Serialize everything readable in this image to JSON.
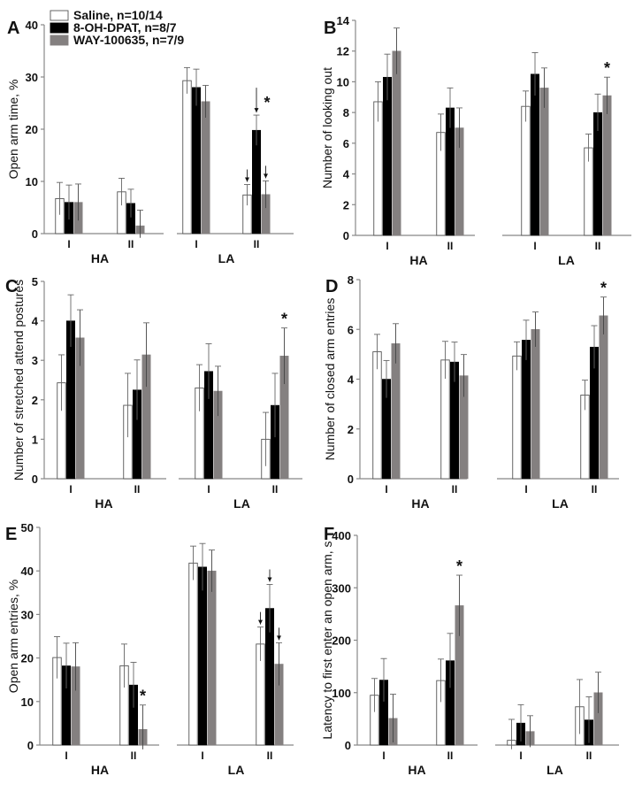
{
  "legend": [
    {
      "label": "Saline, n=10/14",
      "color": "#ffffff",
      "stroke": "#555555"
    },
    {
      "label": "8-OH-DPAT, n=8/7",
      "color": "#000000",
      "stroke": "#000000"
    },
    {
      "label": "WAY-100635, n=7/9",
      "color": "#848080",
      "stroke": "#848080"
    }
  ],
  "chart_data": [
    {
      "panel": "A",
      "type": "bar",
      "ylabel": "Open arm time, %",
      "ylim": [
        0,
        40
      ],
      "yticks": [
        0,
        10,
        20,
        30,
        40
      ],
      "groups": [
        "HA",
        "LA"
      ],
      "categories": [
        "I",
        "II"
      ],
      "series": [
        {
          "name": "Saline",
          "values": [
            [
              6.7,
              8.0
            ],
            [
              29.3,
              7.4
            ]
          ],
          "errors": [
            [
              3.1,
              2.6
            ],
            [
              2.5,
              2.0
            ]
          ]
        },
        {
          "name": "8-OH-DPAT",
          "values": [
            [
              6.0,
              5.8
            ],
            [
              28.0,
              19.8
            ]
          ],
          "errors": [
            [
              3.3,
              2.7
            ],
            [
              3.5,
              2.9
            ]
          ]
        },
        {
          "name": "WAY-100635",
          "values": [
            [
              6.0,
              1.5
            ],
            [
              25.3,
              7.5
            ]
          ],
          "errors": [
            [
              3.5,
              3.0
            ],
            [
              3.1,
              2.6
            ]
          ]
        }
      ],
      "stars": [
        {
          "group": 1,
          "cat": 1,
          "series": 1
        }
      ],
      "arrows": [
        {
          "group": 1,
          "cat": 1,
          "series": 0
        },
        {
          "group": 1,
          "cat": 1,
          "series": 1
        },
        {
          "group": 1,
          "cat": 1,
          "series": 2
        }
      ]
    },
    {
      "panel": "B",
      "type": "bar",
      "ylabel": "Number of looking out",
      "ylim": [
        0,
        14
      ],
      "yticks": [
        0,
        2,
        4,
        6,
        8,
        10,
        12,
        14
      ],
      "groups": [
        "HA",
        "LA"
      ],
      "categories": [
        "I",
        "II"
      ],
      "series": [
        {
          "name": "Saline",
          "values": [
            [
              8.7,
              6.7
            ],
            [
              8.4,
              5.7
            ]
          ],
          "errors": [
            [
              1.3,
              1.2
            ],
            [
              1.0,
              0.9
            ]
          ]
        },
        {
          "name": "8-OH-DPAT",
          "values": [
            [
              10.3,
              8.3
            ],
            [
              10.5,
              8.0
            ]
          ],
          "errors": [
            [
              1.5,
              1.3
            ],
            [
              1.4,
              1.2
            ]
          ]
        },
        {
          "name": "WAY-100635",
          "values": [
            [
              12.0,
              7.0
            ],
            [
              9.6,
              9.1
            ]
          ],
          "errors": [
            [
              1.5,
              1.3
            ],
            [
              1.3,
              1.2
            ]
          ]
        }
      ],
      "stars": [
        {
          "group": 1,
          "cat": 1,
          "series": 2
        }
      ],
      "arrows": []
    },
    {
      "panel": "C",
      "type": "bar",
      "ylabel": "Number of stretched attend postures",
      "ylim": [
        0,
        5
      ],
      "yticks": [
        0,
        1,
        2,
        3,
        4,
        5
      ],
      "groups": [
        "HA",
        "LA"
      ],
      "categories": [
        "I",
        "II"
      ],
      "series": [
        {
          "name": "Saline",
          "values": [
            [
              2.43,
              1.86
            ],
            [
              2.3,
              1.0
            ]
          ],
          "errors": [
            [
              0.71,
              0.81
            ],
            [
              0.59,
              0.68
            ]
          ]
        },
        {
          "name": "8-OH-DPAT",
          "values": [
            [
              4.0,
              2.25
            ],
            [
              2.72,
              1.86
            ]
          ],
          "errors": [
            [
              0.66,
              0.76
            ],
            [
              0.7,
              0.81
            ]
          ]
        },
        {
          "name": "WAY-100635",
          "values": [
            [
              3.57,
              3.14
            ],
            [
              2.22,
              3.11
            ]
          ],
          "errors": [
            [
              0.71,
              0.81
            ],
            [
              0.63,
              0.71
            ]
          ]
        }
      ],
      "stars": [
        {
          "group": 1,
          "cat": 1,
          "series": 2
        }
      ],
      "arrows": []
    },
    {
      "panel": "D",
      "type": "bar",
      "ylabel": "Number of closed arm entries",
      "ylim": [
        0,
        8
      ],
      "yticks": [
        0,
        2,
        4,
        6,
        8
      ],
      "groups": [
        "HA",
        "LA"
      ],
      "categories": [
        "I",
        "II"
      ],
      "series": [
        {
          "name": "Saline",
          "values": [
            [
              5.1,
              4.77
            ],
            [
              4.93,
              3.36
            ]
          ],
          "errors": [
            [
              0.7,
              0.75
            ],
            [
              0.57,
              0.6
            ]
          ]
        },
        {
          "name": "8-OH-DPAT",
          "values": [
            [
              4.0,
              4.69
            ],
            [
              5.57,
              5.29
            ]
          ],
          "errors": [
            [
              0.75,
              0.8
            ],
            [
              0.8,
              0.86
            ]
          ]
        },
        {
          "name": "WAY-100635",
          "values": [
            [
              5.43,
              4.14
            ],
            [
              6.0,
              6.55
            ]
          ],
          "errors": [
            [
              0.8,
              0.85
            ],
            [
              0.7,
              0.75
            ]
          ]
        }
      ],
      "stars": [
        {
          "group": 1,
          "cat": 1,
          "series": 2
        }
      ],
      "arrows": []
    },
    {
      "panel": "E",
      "type": "bar",
      "ylabel": "Open arm entries, %",
      "ylim": [
        0,
        50
      ],
      "yticks": [
        0,
        10,
        20,
        30,
        40,
        50
      ],
      "groups": [
        "HA",
        "LA"
      ],
      "categories": [
        "I",
        "II"
      ],
      "series": [
        {
          "name": "Saline",
          "values": [
            [
              20.1,
              18.2
            ],
            [
              41.8,
              23.2
            ]
          ],
          "errors": [
            [
              4.8,
              5.0
            ],
            [
              3.9,
              3.9
            ]
          ]
        },
        {
          "name": "8-OH-DPAT",
          "values": [
            [
              18.2,
              13.8
            ],
            [
              40.9,
              31.4
            ]
          ],
          "errors": [
            [
              5.2,
              5.2
            ],
            [
              5.4,
              5.5
            ]
          ]
        },
        {
          "name": "WAY-100635",
          "values": [
            [
              18.0,
              3.6
            ],
            [
              40.0,
              18.6
            ]
          ],
          "errors": [
            [
              5.5,
              5.6
            ],
            [
              4.8,
              4.9
            ]
          ]
        }
      ],
      "stars": [
        {
          "group": 0,
          "cat": 1,
          "series": 2
        }
      ],
      "arrows": [
        {
          "group": 1,
          "cat": 1,
          "series": 0
        },
        {
          "group": 1,
          "cat": 1,
          "series": 1
        },
        {
          "group": 1,
          "cat": 1,
          "series": 2
        }
      ]
    },
    {
      "panel": "F",
      "type": "bar",
      "ylabel": "Latency to first enter an open arm, s",
      "ylim": [
        0,
        400
      ],
      "yticks": [
        0,
        100,
        200,
        300,
        400
      ],
      "groups": [
        "HA",
        "LA"
      ],
      "categories": [
        "I",
        "II"
      ],
      "series": [
        {
          "name": "Saline",
          "values": [
            [
              95,
              123
            ],
            [
              9,
              73
            ]
          ],
          "errors": [
            [
              32,
              41
            ],
            [
              40,
              52
            ]
          ]
        },
        {
          "name": "8-OH-DPAT",
          "values": [
            [
              124,
              161
            ],
            [
              42,
              48
            ]
          ],
          "errors": [
            [
              41,
              52
            ],
            [
              35,
              44
            ]
          ]
        },
        {
          "name": "WAY-100635",
          "values": [
            [
              51,
              266
            ],
            [
              26,
              100
            ]
          ],
          "errors": [
            [
              46,
              58
            ],
            [
              30,
              39
            ]
          ]
        }
      ],
      "stars": [
        {
          "group": 0,
          "cat": 1,
          "series": 2
        }
      ],
      "arrows": []
    }
  ]
}
